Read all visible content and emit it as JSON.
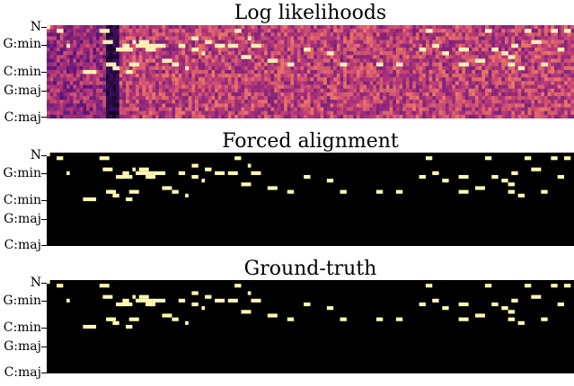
{
  "chart_data": [
    {
      "type": "heatmap",
      "title": "Log likelihoods",
      "ytick_labels": [
        "N",
        "G:min",
        "C:min",
        "G:maj",
        "C:maj"
      ],
      "colormap": "magma",
      "rows": 25,
      "cols": 160
    },
    {
      "type": "heatmap",
      "title": "Forced alignment",
      "ytick_labels": [
        "N",
        "G:min",
        "C:min",
        "G:maj",
        "C:maj"
      ],
      "background_color": "#000000",
      "mark_color": "#fffbb2",
      "rows": 25,
      "cols": 160,
      "segments": [
        [
          0,
          0,
          1
        ],
        [
          1,
          3,
          5
        ],
        [
          5,
          6,
          7
        ],
        [
          12,
          11,
          15
        ],
        [
          1,
          16,
          19
        ],
        [
          4,
          17,
          20
        ],
        [
          10,
          18,
          20
        ],
        [
          10,
          19,
          21
        ],
        [
          11,
          20,
          22
        ],
        [
          6,
          21,
          23
        ],
        [
          6,
          22,
          26
        ],
        [
          5,
          23,
          25
        ],
        [
          12,
          24,
          26
        ],
        [
          10,
          25,
          28
        ],
        [
          4,
          26,
          27
        ],
        [
          5,
          27,
          29
        ],
        [
          4,
          28,
          31
        ],
        [
          5,
          29,
          32
        ],
        [
          6,
          30,
          32
        ],
        [
          6,
          31,
          33
        ],
        [
          5,
          32,
          36
        ],
        [
          9,
          35,
          38
        ],
        [
          10,
          38,
          40
        ],
        [
          5,
          40,
          42
        ],
        [
          11,
          42,
          43
        ],
        [
          6,
          44,
          46
        ],
        [
          3,
          44,
          46
        ],
        [
          7,
          47,
          48
        ],
        [
          4,
          48,
          50
        ],
        [
          5,
          51,
          54
        ],
        [
          5,
          55,
          58
        ],
        [
          1,
          57,
          59
        ],
        [
          8,
          59,
          62
        ],
        [
          3,
          61,
          62
        ],
        [
          5,
          62,
          65
        ],
        [
          9,
          67,
          70
        ],
        [
          10,
          73,
          75
        ],
        [
          6,
          78,
          80
        ],
        [
          7,
          85,
          87
        ],
        [
          10,
          89,
          91
        ],
        [
          10,
          100,
          102
        ],
        [
          10,
          106,
          108
        ],
        [
          6,
          113,
          115
        ],
        [
          1,
          115,
          117
        ],
        [
          5,
          117,
          119
        ],
        [
          7,
          120,
          122
        ],
        [
          6,
          125,
          128
        ],
        [
          10,
          125,
          128
        ],
        [
          9,
          130,
          133
        ],
        [
          1,
          133,
          135
        ],
        [
          6,
          135,
          137
        ],
        [
          7,
          138,
          140
        ],
        [
          10,
          140,
          142
        ],
        [
          8,
          140,
          142
        ],
        [
          5,
          141,
          143
        ],
        [
          11,
          143,
          145
        ],
        [
          1,
          145,
          147
        ],
        [
          4,
          147,
          150
        ],
        [
          10,
          150,
          152
        ],
        [
          1,
          153,
          155
        ],
        [
          6,
          155,
          157
        ],
        [
          1,
          157,
          159
        ]
      ]
    },
    {
      "type": "heatmap",
      "title": "Ground-truth",
      "ytick_labels": [
        "N",
        "G:min",
        "C:min",
        "G:maj",
        "C:maj"
      ],
      "background_color": "#000000",
      "mark_color": "#fffbb2",
      "rows": 25,
      "cols": 160,
      "segments": [
        [
          0,
          0,
          1
        ],
        [
          1,
          3,
          5
        ],
        [
          5,
          6,
          7
        ],
        [
          12,
          11,
          15
        ],
        [
          1,
          16,
          19
        ],
        [
          4,
          17,
          20
        ],
        [
          10,
          18,
          20
        ],
        [
          10,
          19,
          21
        ],
        [
          11,
          20,
          22
        ],
        [
          6,
          21,
          23
        ],
        [
          6,
          22,
          26
        ],
        [
          5,
          23,
          25
        ],
        [
          12,
          24,
          26
        ],
        [
          10,
          25,
          28
        ],
        [
          4,
          26,
          27
        ],
        [
          5,
          27,
          29
        ],
        [
          4,
          28,
          31
        ],
        [
          5,
          29,
          32
        ],
        [
          6,
          30,
          32
        ],
        [
          6,
          31,
          33
        ],
        [
          5,
          32,
          36
        ],
        [
          9,
          35,
          38
        ],
        [
          10,
          38,
          40
        ],
        [
          5,
          40,
          42
        ],
        [
          11,
          42,
          43
        ],
        [
          6,
          44,
          46
        ],
        [
          3,
          44,
          46
        ],
        [
          7,
          47,
          48
        ],
        [
          4,
          48,
          50
        ],
        [
          5,
          51,
          54
        ],
        [
          5,
          55,
          58
        ],
        [
          1,
          57,
          59
        ],
        [
          8,
          59,
          62
        ],
        [
          3,
          61,
          62
        ],
        [
          5,
          62,
          65
        ],
        [
          9,
          67,
          70
        ],
        [
          10,
          73,
          75
        ],
        [
          6,
          78,
          80
        ],
        [
          7,
          85,
          87
        ],
        [
          10,
          89,
          91
        ],
        [
          10,
          100,
          102
        ],
        [
          10,
          106,
          108
        ],
        [
          6,
          113,
          115
        ],
        [
          1,
          115,
          117
        ],
        [
          5,
          117,
          119
        ],
        [
          7,
          120,
          122
        ],
        [
          6,
          125,
          128
        ],
        [
          10,
          125,
          128
        ],
        [
          9,
          130,
          133
        ],
        [
          1,
          133,
          135
        ],
        [
          6,
          135,
          137
        ],
        [
          7,
          138,
          140
        ],
        [
          10,
          140,
          142
        ],
        [
          8,
          140,
          142
        ],
        [
          5,
          141,
          143
        ],
        [
          11,
          143,
          145
        ],
        [
          1,
          145,
          147
        ],
        [
          4,
          147,
          150
        ],
        [
          10,
          150,
          152
        ],
        [
          1,
          153,
          155
        ],
        [
          6,
          155,
          157
        ],
        [
          1,
          157,
          159
        ]
      ]
    }
  ]
}
